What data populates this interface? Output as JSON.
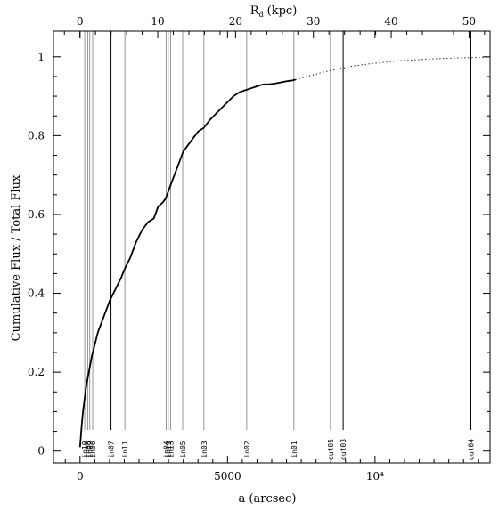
{
  "chart_data": {
    "type": "line",
    "xlabel": "a (arcsec)",
    "ylabel": "Cumulative Flux / Total Flux",
    "top_xlabel": "R",
    "top_xlabel_sub": "d",
    "top_xlabel_unit": "(kpc)",
    "xlim": [
      -900,
      13900
    ],
    "ylim": [
      -0.03,
      1.065
    ],
    "top_xlim_kpc": [
      -3.4,
      52.7
    ],
    "x_ticks": [
      {
        "value": 0,
        "label": "0"
      },
      {
        "value": 5000,
        "label": "5000"
      },
      {
        "value": 10000,
        "label": "10⁴"
      }
    ],
    "y_ticks": [
      {
        "value": 0,
        "label": "0"
      },
      {
        "value": 0.2,
        "label": "0.2"
      },
      {
        "value": 0.4,
        "label": "0.4"
      },
      {
        "value": 0.6,
        "label": "0.6"
      },
      {
        "value": 0.8,
        "label": "0.8"
      },
      {
        "value": 1,
        "label": "1"
      }
    ],
    "top_ticks": [
      {
        "value": 0,
        "label": "0"
      },
      {
        "value": 10,
        "label": "10"
      },
      {
        "value": 20,
        "label": "20"
      },
      {
        "value": 30,
        "label": "30"
      },
      {
        "value": 40,
        "label": "40"
      },
      {
        "value": 50,
        "label": "50"
      }
    ],
    "series": [
      {
        "style": "solid",
        "x": [
          0,
          50,
          100,
          150,
          200,
          300,
          400,
          500,
          600,
          700,
          800,
          900,
          1000,
          1200,
          1400,
          1500,
          1700,
          1900,
          2100,
          2300,
          2500,
          2650,
          2800,
          2900,
          3000,
          3100,
          3200,
          3300,
          3400,
          3500,
          3600,
          3700,
          3800,
          4000,
          4200,
          4400,
          4600,
          4800,
          5000,
          5200,
          5400,
          5600,
          5800,
          6000,
          6200,
          6400,
          6600,
          6800,
          7000,
          7200,
          7300
        ],
        "y": [
          0.01,
          0.06,
          0.1,
          0.13,
          0.16,
          0.2,
          0.24,
          0.27,
          0.3,
          0.32,
          0.34,
          0.36,
          0.38,
          0.41,
          0.44,
          0.46,
          0.49,
          0.53,
          0.56,
          0.58,
          0.59,
          0.62,
          0.63,
          0.64,
          0.66,
          0.68,
          0.7,
          0.72,
          0.74,
          0.76,
          0.77,
          0.78,
          0.79,
          0.81,
          0.82,
          0.84,
          0.855,
          0.87,
          0.885,
          0.9,
          0.91,
          0.915,
          0.92,
          0.925,
          0.93,
          0.93,
          0.932,
          0.935,
          0.938,
          0.94,
          0.942
        ]
      },
      {
        "style": "dotted",
        "x": [
          7300,
          7800,
          8300,
          8800,
          9300,
          9800,
          10300,
          10800,
          11300,
          11800,
          12300,
          12800,
          13300,
          13900
        ],
        "y": [
          0.942,
          0.952,
          0.962,
          0.97,
          0.977,
          0.982,
          0.986,
          0.99,
          0.992,
          0.994,
          0.996,
          0.997,
          0.998,
          0.999
        ]
      }
    ],
    "markers": [
      {
        "a": 160,
        "label": "in10",
        "color": "gray"
      },
      {
        "a": 260,
        "label": "in08",
        "color": "gray"
      },
      {
        "a": 330,
        "label": "in09",
        "color": "gray"
      },
      {
        "a": 430,
        "label": "in06",
        "color": "gray"
      },
      {
        "a": 1050,
        "label": "in07",
        "color": "black"
      },
      {
        "a": 1520,
        "label": "in11",
        "color": "gray"
      },
      {
        "a": 2920,
        "label": "in04",
        "color": "gray"
      },
      {
        "a": 2990,
        "label": "in12",
        "color": "gray"
      },
      {
        "a": 3070,
        "label": "in13",
        "color": "gray"
      },
      {
        "a": 3480,
        "label": "in05",
        "color": "gray"
      },
      {
        "a": 4200,
        "label": "in03",
        "color": "gray"
      },
      {
        "a": 5650,
        "label": "in02",
        "color": "gray"
      },
      {
        "a": 7250,
        "label": "in01",
        "color": "gray"
      },
      {
        "a": 8500,
        "label": "out05",
        "color": "black"
      },
      {
        "a": 8920,
        "label": "out03",
        "color": "black"
      },
      {
        "a": 13250,
        "label": "out04",
        "color": "black"
      }
    ]
  }
}
